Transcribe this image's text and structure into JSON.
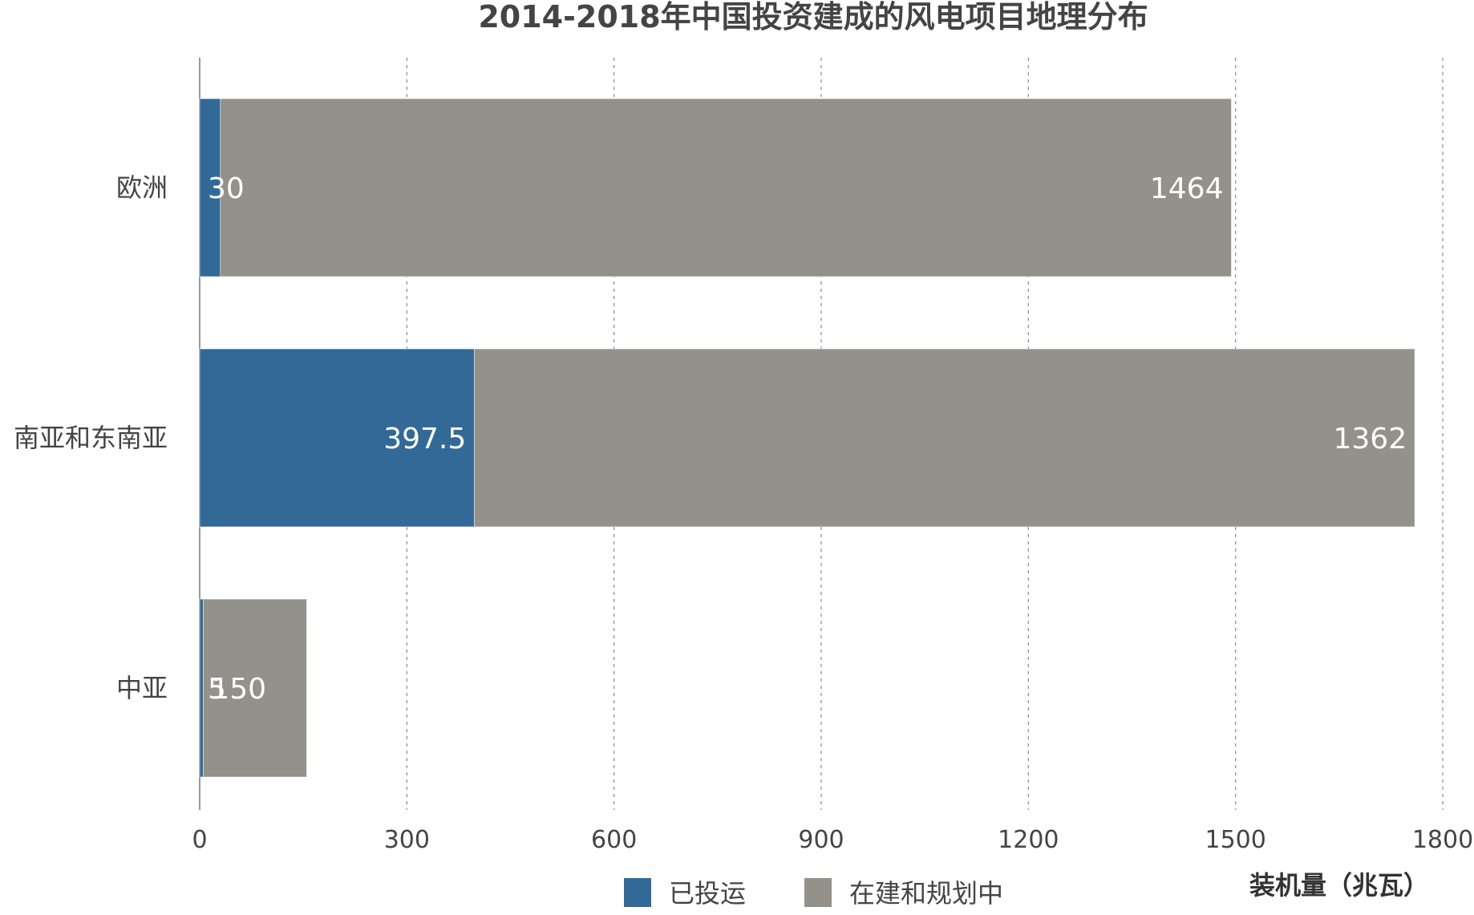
{
  "chart_data": {
    "type": "bar",
    "orientation": "horizontal",
    "stacked": true,
    "title": "2014-2018年中国投资建成的风电项目地理分布",
    "xlabel": "装机量（兆瓦）",
    "ylabel": "",
    "categories": [
      "欧洲",
      "南亚和东南亚",
      "中亚"
    ],
    "series": [
      {
        "name": "已投运",
        "values": [
          30,
          397.5,
          5
        ],
        "color": "#336996"
      },
      {
        "name": "在建和规划中",
        "values": [
          1464,
          1362,
          150
        ],
        "color": "#94918a"
      }
    ],
    "xlim": [
      0,
      1800
    ],
    "xticks": [
      0,
      300,
      600,
      900,
      1200,
      1500,
      1800
    ],
    "tick_labels": [
      "0",
      "300",
      "600",
      "900",
      "1200",
      "1500",
      "1800"
    ],
    "grid": "vertical-dashed",
    "legend": "bottom"
  }
}
